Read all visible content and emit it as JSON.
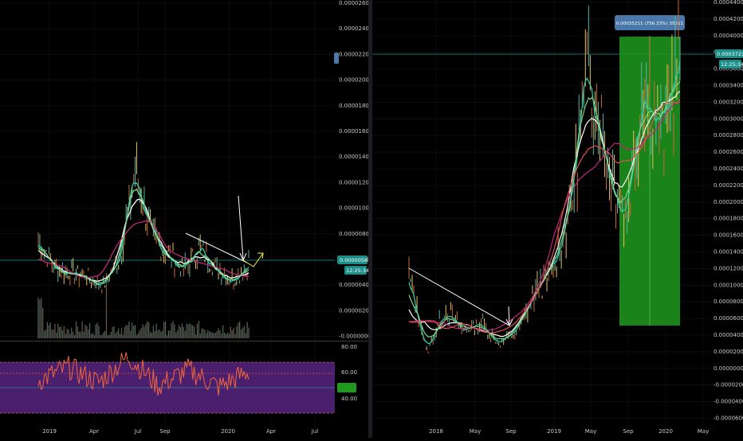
{
  "left": {
    "price_axis_ticks": [
      "0.00002600",
      "0.00002400",
      "0.00002200",
      "0.00002000",
      "0.00001800",
      "0.00001600",
      "0.00001400",
      "0.00001200",
      "0.00001000",
      "0.00000800",
      "0.00000600",
      "0.00000400",
      "0.00000200",
      "-0.00000000"
    ],
    "current_price": "0.00000581",
    "countdown": "12:25:34",
    "rsi_ticks": [
      "80.00",
      "60.00",
      "40.00"
    ],
    "rsi_value": "51.??",
    "time_labels": [
      "2019",
      "Apr",
      "Jul",
      "Sep",
      "2020",
      "Apr",
      "Jul"
    ]
  },
  "right": {
    "price_axis_ticks": [
      "0.00044000",
      "0.00042000",
      "0.00040000",
      "0.00038000",
      "0.00036000",
      "0.00034000",
      "0.00032000",
      "0.00030000",
      "0.00028000",
      "0.00026000",
      "0.00024000",
      "0.00022000",
      "0.00020000",
      "0.00018000",
      "0.00016000",
      "0.00014000",
      "0.00012000",
      "0.00010000",
      "0.00008000",
      "0.00006000",
      "0.00004000",
      "0.00002000",
      "0.00000000",
      "-0.00002000",
      "-0.00004000",
      "-0.00006000"
    ],
    "current_price": "0.00037235",
    "countdown": "12:25:34",
    "measure_label": "0.00035211 (756.33%) 35211",
    "time_labels": [
      "2018",
      "May",
      "Sep",
      "2019",
      "May",
      "Sep",
      "2020",
      "May"
    ]
  },
  "colors": {
    "rsi_band": "#4a1f6e",
    "rsi_line": "#f0663c",
    "measure_box": "#1e9a1e",
    "tag": "#1a8f8a",
    "annotation": "#ffffff",
    "ma_white": "#ffffff",
    "ma_magenta": "#c0267a"
  },
  "chart_data": [
    {
      "type": "line",
      "title": "",
      "x": [
        "2019-01",
        "2019-02",
        "2019-03",
        "2019-04",
        "2019-05",
        "2019-06",
        "2019-07",
        "2019-08",
        "2019-09",
        "2019-10",
        "2019-11",
        "2019-12",
        "2020-01",
        "2020-02"
      ],
      "series": [
        {
          "values": [
            7.8e-06,
            5.5e-06,
            5e-06,
            4.8e-06,
            4e-06,
            6e-06,
            1.3e-05,
            8e-06,
            6.5e-06,
            5.2e-06,
            7e-06,
            5.5e-06,
            4.5e-06,
            5.8e-06
          ]
        }
      ],
      "ylim": [
        0,
        2.6e-05
      ]
    },
    {
      "type": "line",
      "title": "",
      "x": [
        "2019-01",
        "2019-03",
        "2019-05",
        "2019-07",
        "2019-09",
        "2019-11",
        "2020-01",
        "2020-02"
      ],
      "series": [
        {
          "values": [
            50,
            62,
            48,
            72,
            45,
            60,
            44,
            58
          ]
        }
      ],
      "ylim": [
        20,
        85
      ]
    },
    {
      "type": "line",
      "title": "",
      "x": [
        "2017-11",
        "2018-01",
        "2018-03",
        "2018-05",
        "2018-07",
        "2018-09",
        "2018-11",
        "2019-01",
        "2019-03",
        "2019-05",
        "2019-06",
        "2019-07",
        "2019-09",
        "2019-11",
        "2020-01",
        "2020-02"
      ],
      "series": [
        {
          "values": [
            0.00011,
            2e-05,
            7e-05,
            4.5e-05,
            5.5e-05,
            3e-05,
            4.5e-05,
            9e-05,
            0.00012,
            0.0002,
            0.00037,
            0.00025,
            0.00018,
            0.00035,
            0.00028,
            0.000372
          ]
        }
      ],
      "ylim": [
        -6e-05,
        0.00044
      ]
    }
  ]
}
